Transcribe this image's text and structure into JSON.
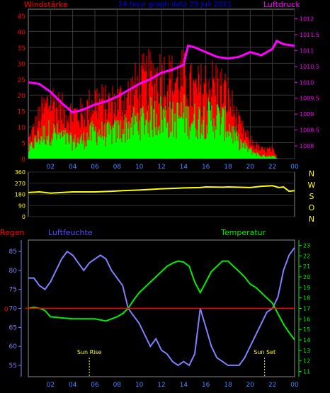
{
  "chart_data": [
    {
      "type": "line",
      "title": "24-hour graph data  29 Juli 2021",
      "ylabel_left": "Windstärke",
      "ylabel_right": "Luftdruck",
      "x_ticks": [
        "02",
        "04",
        "06",
        "08",
        "10",
        "12",
        "14",
        "16",
        "18",
        "20",
        "22",
        "00"
      ],
      "ylim_left": [
        0,
        47
      ],
      "y_ticks_left": [
        0,
        5,
        10,
        15,
        20,
        25,
        30,
        35,
        40,
        45
      ],
      "ylim_right": [
        1007.6,
        1012.3
      ],
      "y_ticks_right": [
        1008,
        1008.5,
        1009,
        1009.5,
        1010,
        1010.5,
        1011,
        1011.5,
        1012
      ],
      "grid": true,
      "colors": {
        "gust": "#ff0000",
        "wind": "#00ff00",
        "pressure": "#ff00ff",
        "title": "#0000ff",
        "left_label": "#ff0000",
        "right_label": "#ff00ff",
        "grid": "#3a3a3a"
      },
      "series": [
        {
          "key": "pressure",
          "x": [
            0,
            1,
            2,
            3,
            4,
            5,
            6,
            7,
            8,
            9,
            10,
            11,
            12,
            13,
            14,
            14.4,
            15,
            16,
            17,
            18,
            19,
            20,
            21,
            22,
            22.4,
            23,
            24
          ],
          "y": [
            1010,
            1009.95,
            1009.7,
            1009.35,
            1009.05,
            1009.15,
            1009.3,
            1009.4,
            1009.55,
            1009.75,
            1009.95,
            1010.1,
            1010.3,
            1010.4,
            1010.55,
            1011.15,
            1011.1,
            1010.95,
            1010.8,
            1010.75,
            1010.8,
            1010.95,
            1010.85,
            1011.05,
            1011.3,
            1011.2,
            1011.15
          ]
        },
        {
          "key": "gust",
          "x": [
            0,
            1,
            2,
            3,
            4,
            5,
            6,
            7,
            8,
            9,
            10,
            11,
            12,
            13,
            14,
            15,
            16,
            17,
            18,
            19,
            20,
            21,
            22,
            22.5,
            24
          ],
          "y": [
            6,
            14,
            20,
            16,
            15,
            15,
            20,
            18,
            19,
            21,
            25,
            27,
            28,
            26,
            27,
            22,
            25,
            25,
            21,
            11,
            6,
            3,
            3,
            0,
            0
          ]
        },
        {
          "key": "wind",
          "x": [
            0,
            1,
            2,
            3,
            4,
            5,
            6,
            7,
            8,
            9,
            10,
            11,
            12,
            13,
            14,
            15,
            16,
            17,
            18,
            19,
            20,
            21,
            22,
            22.5,
            24
          ],
          "y": [
            3,
            8,
            10,
            8,
            6,
            7,
            10,
            9,
            10,
            12,
            14,
            15,
            16,
            14,
            16,
            14,
            15,
            15,
            12,
            6,
            3,
            1,
            1,
            0,
            0
          ]
        }
      ]
    },
    {
      "type": "line",
      "x_ticks": [],
      "ylim": [
        0,
        360
      ],
      "y_ticks": [
        0,
        90,
        180,
        270,
        360
      ],
      "right_labels": [
        "N",
        "W",
        "S",
        "O",
        "N"
      ],
      "colors": {
        "direction": "#ffff00",
        "right_labels": "#ffff00"
      },
      "series": [
        {
          "key": "direction",
          "x": [
            0,
            1,
            2,
            4,
            6,
            7.5,
            8.5,
            10,
            12,
            13.5,
            14,
            15.5,
            16,
            17.5,
            18,
            20,
            21,
            22,
            22.6,
            23,
            23.5,
            24
          ],
          "y": [
            195,
            200,
            190,
            200,
            200,
            205,
            210,
            215,
            225,
            230,
            232,
            235,
            240,
            238,
            240,
            235,
            245,
            250,
            235,
            240,
            205,
            210
          ]
        }
      ]
    },
    {
      "type": "line",
      "ylabel_left": "Regen",
      "series_label_1": "Luftfeuchte",
      "series_label_2": "Temperatur",
      "x_ticks": [
        "02",
        "04",
        "06",
        "08",
        "10",
        "12",
        "14",
        "16",
        "18",
        "20",
        "22",
        "00"
      ],
      "ylim_humidity": [
        52,
        88
      ],
      "y_ticks_humidity": [
        55,
        60,
        65,
        70,
        75,
        80,
        85
      ],
      "ylim_temp": [
        10.5,
        23.5
      ],
      "y_ticks_temp": [
        11,
        12,
        13,
        14,
        15,
        16,
        17,
        18,
        19,
        20,
        21,
        22,
        23
      ],
      "rain_value": 0,
      "rain_zero_label": "0",
      "sunrise_label": "Sun Rise",
      "sunset_label": "Sun Set",
      "sunrise_hour": 5.5,
      "sunset_hour": 21.3,
      "colors": {
        "humidity": "#8080ff",
        "temperature": "#00ee00",
        "rain": "#ff0000",
        "regen_label": "#ff0000",
        "humidity_label": "#5050ff",
        "temperature_label": "#00ee00",
        "sun": "#ffff00"
      },
      "series": [
        {
          "key": "humidity",
          "x": [
            0,
            0.5,
            1,
            1.5,
            2,
            3,
            3.5,
            4,
            4.5,
            5,
            5.5,
            6,
            6.5,
            7,
            7.5,
            8,
            8.5,
            9,
            9.5,
            10,
            10.5,
            11,
            11.5,
            12,
            12.5,
            13,
            13.5,
            14,
            14.5,
            15,
            15.5,
            16,
            16.5,
            17,
            17.5,
            18,
            18.5,
            19,
            19.5,
            20,
            20.5,
            21,
            21.5,
            22,
            22.5,
            23,
            23.5,
            24
          ],
          "y": [
            78,
            78,
            76,
            75,
            77,
            83,
            85,
            84,
            82,
            80,
            82,
            83,
            84,
            83,
            80,
            78,
            76,
            70,
            68,
            66,
            63,
            60,
            62,
            59,
            58,
            56,
            55,
            56,
            55,
            58,
            70,
            65,
            60,
            57,
            56,
            55,
            55,
            55,
            57,
            60,
            63,
            66,
            69,
            70,
            73,
            80,
            84,
            86
          ]
        },
        {
          "key": "temperature",
          "x": [
            0,
            0.5,
            1,
            1.5,
            2,
            3,
            4,
            5,
            6,
            7,
            7.5,
            8,
            8.5,
            9,
            9.5,
            10,
            10.5,
            11,
            11.5,
            12,
            12.5,
            13,
            13.5,
            14,
            14.5,
            15,
            15.5,
            16,
            16.5,
            17,
            17.5,
            18,
            18.5,
            19,
            19.5,
            20,
            20.5,
            21,
            21.5,
            22,
            22.5,
            23,
            23.5,
            24
          ],
          "y": [
            17,
            17.1,
            17,
            16.8,
            16.2,
            16.1,
            16,
            16,
            16,
            15.8,
            16,
            16.2,
            16.5,
            17,
            17.8,
            18.5,
            19,
            19.5,
            20,
            20.5,
            21,
            21.3,
            21.5,
            21.4,
            21,
            19.5,
            18.5,
            19.5,
            20.5,
            21,
            21.5,
            21.5,
            21,
            20.5,
            20,
            19.3,
            19,
            18.5,
            18,
            17.5,
            16.5,
            15.5,
            14.7,
            14
          ]
        }
      ]
    }
  ]
}
